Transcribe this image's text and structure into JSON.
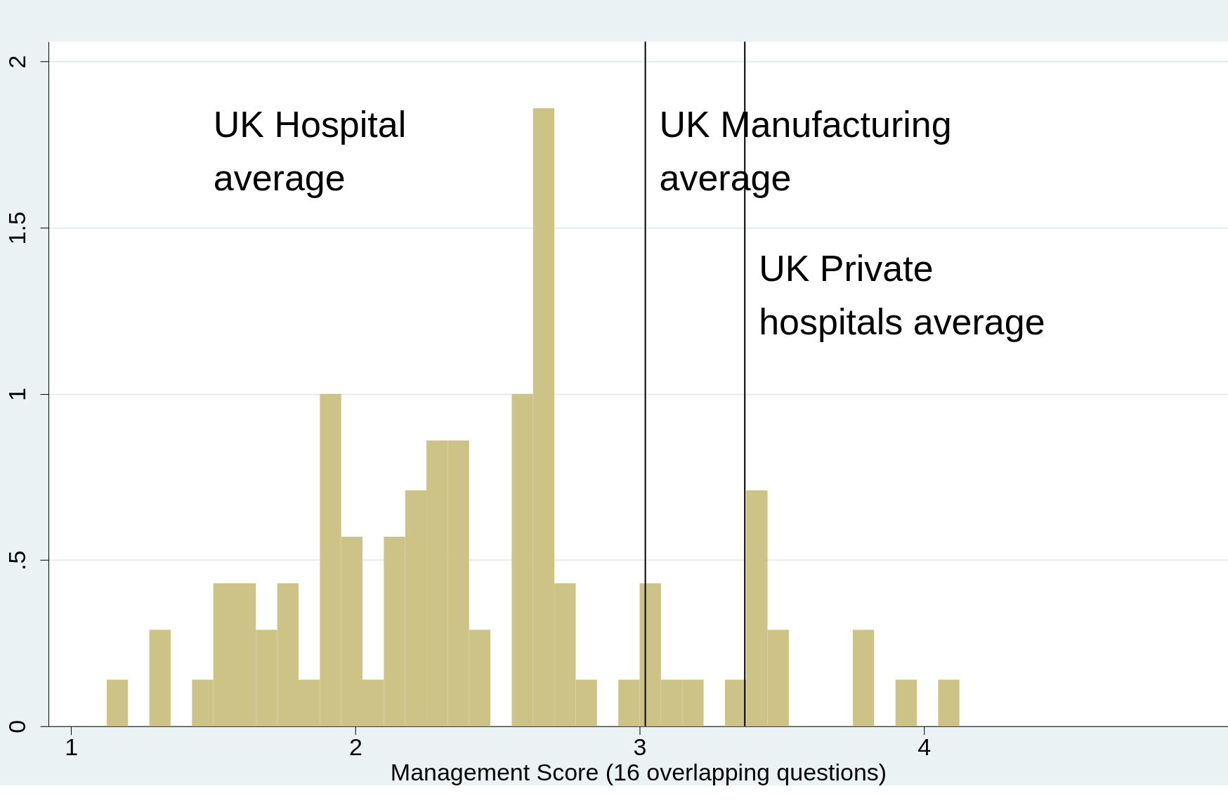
{
  "chart_data": {
    "type": "histogram",
    "xlabel": "Management Score (16 overlapping questions)",
    "bins": [
      1.125,
      1.2,
      1.275,
      1.35,
      1.425,
      1.5,
      1.575,
      1.65,
      1.725,
      1.8,
      1.875,
      1.95,
      2.025,
      2.1,
      2.175,
      2.25,
      2.325,
      2.4,
      2.475,
      2.55,
      2.625,
      2.7,
      2.775,
      2.85,
      2.925,
      3.0,
      3.075,
      3.15,
      3.225,
      3.3,
      3.375,
      3.45,
      3.525,
      3.6,
      3.675,
      3.75,
      3.825,
      3.9,
      3.975,
      4.05,
      4.125
    ],
    "values": [
      0.14,
      0,
      0.29,
      0,
      0.14,
      0.43,
      0.43,
      0.29,
      0.43,
      0.14,
      1.0,
      0.57,
      0.14,
      0.57,
      0.71,
      0.86,
      0.86,
      0.29,
      0,
      1.0,
      1.86,
      0.43,
      0.14,
      0,
      0.14,
      0.43,
      0.14,
      0.14,
      0,
      0.14,
      0.71,
      0.29,
      0,
      0,
      0,
      0.29,
      0,
      0.14,
      0,
      0.14
    ],
    "color": "#cdc386",
    "xlim": [
      0.92,
      5.07
    ],
    "ylim": [
      0,
      2.06
    ],
    "xticks": [
      1,
      2,
      3,
      4
    ],
    "yticks": [
      0,
      {
        "value": 0.5,
        "label": ".5"
      },
      1,
      1.5,
      2
    ],
    "grid": "y",
    "ref_lines": [
      {
        "axis": "x",
        "value": 3.02,
        "label": "UK Manufacturing\naverage",
        "color": "#000000"
      },
      {
        "axis": "x",
        "value": 3.37,
        "label": "UK Private\nhospitals average",
        "color": "#000000"
      }
    ],
    "annotations": [
      "UK Hospital\naverage"
    ]
  }
}
